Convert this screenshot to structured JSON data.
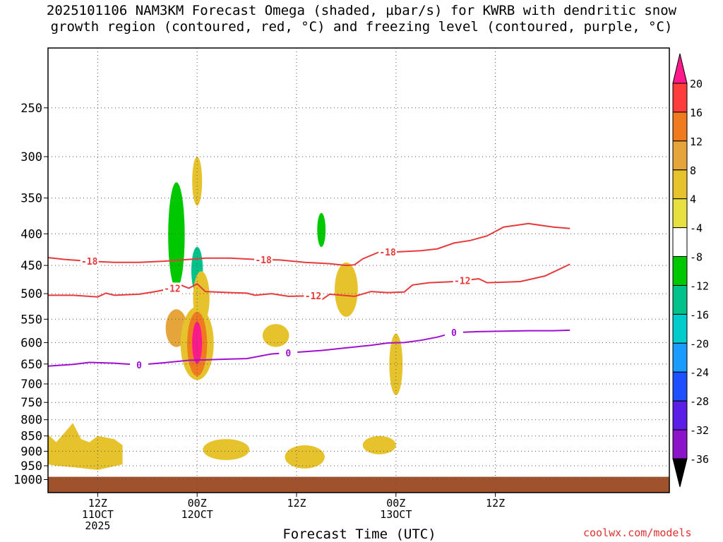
{
  "title": {
    "line1": "2025101106 NAM3KM Forecast Omega (shaded, µbar/s) for KWRB with dendritic snow",
    "line2": "growth region (contoured, red, °C) and freezing level (contoured, purple, °C)"
  },
  "credit": "coolwx.com/models",
  "chart_data": {
    "type": "heatmap",
    "xlabel": "Forecast Time (UTC)",
    "ylabel": "",
    "x_range_hours": [
      6,
      81
    ],
    "y_range_hpa": [
      1050,
      200
    ],
    "y_ticks": [
      250,
      300,
      350,
      400,
      450,
      500,
      550,
      600,
      650,
      700,
      750,
      800,
      850,
      900,
      950,
      1000
    ],
    "x_ticks": [
      {
        "hour": 12,
        "label": "12Z",
        "sub1": "11OCT",
        "sub2": "2025"
      },
      {
        "hour": 24,
        "label": "00Z",
        "sub1": "12OCT",
        "sub2": ""
      },
      {
        "hour": 36,
        "label": "12Z",
        "sub1": "",
        "sub2": ""
      },
      {
        "hour": 48,
        "label": "00Z",
        "sub1": "13OCT",
        "sub2": ""
      },
      {
        "hour": 60,
        "label": "12Z",
        "sub1": "",
        "sub2": ""
      }
    ],
    "grid": true,
    "colorbar": {
      "levels": [
        20,
        16,
        12,
        8,
        4,
        -4,
        -8,
        -12,
        -16,
        -20,
        -24,
        -28,
        -32,
        -36
      ],
      "colors": [
        "#ff1a8c",
        "#ff3d3d",
        "#f07a1e",
        "#e6a53a",
        "#e6c32c",
        "#e6e040",
        "#ffffff",
        "#00c800",
        "#00c28a",
        "#00cccc",
        "#1a9cff",
        "#1e50ff",
        "#5a1ee6",
        "#8c14c8",
        "#b400c8",
        "#a0a0a0",
        "#000000"
      ]
    },
    "contours": [
      {
        "color": "#e83a3a",
        "label": "-18",
        "points": [
          [
            6,
            437
          ],
          [
            8,
            440
          ],
          [
            11,
            443
          ],
          [
            14,
            445
          ],
          [
            17,
            445
          ],
          [
            20,
            443
          ],
          [
            23,
            440
          ],
          [
            25,
            438
          ],
          [
            28,
            438
          ],
          [
            31,
            440
          ],
          [
            34,
            441
          ],
          [
            37,
            445
          ],
          [
            40,
            447
          ],
          [
            42,
            450
          ],
          [
            43,
            449
          ],
          [
            44,
            439
          ],
          [
            46,
            428
          ],
          [
            48,
            428
          ],
          [
            51,
            426
          ],
          [
            53,
            423
          ],
          [
            55,
            414
          ],
          [
            57,
            410
          ],
          [
            59,
            403
          ],
          [
            61,
            390
          ],
          [
            64,
            385
          ],
          [
            67,
            390
          ],
          [
            69,
            392
          ]
        ],
        "label_hours": [
          11,
          32,
          47
        ]
      },
      {
        "color": "#e83a3a",
        "label": "-12",
        "points": [
          [
            6,
            503
          ],
          [
            9,
            503
          ],
          [
            12,
            506
          ],
          [
            13,
            499
          ],
          [
            14,
            503
          ],
          [
            17,
            501
          ],
          [
            19,
            496
          ],
          [
            21,
            490
          ],
          [
            22,
            484
          ],
          [
            23,
            490
          ],
          [
            24,
            482
          ],
          [
            25,
            496
          ],
          [
            28,
            498
          ],
          [
            30,
            499
          ],
          [
            31,
            503
          ],
          [
            33,
            500
          ],
          [
            35,
            505
          ],
          [
            38,
            504
          ],
          [
            39,
            512
          ],
          [
            40,
            501
          ],
          [
            43,
            505
          ],
          [
            45,
            496
          ],
          [
            47,
            498
          ],
          [
            49,
            497
          ],
          [
            50,
            484
          ],
          [
            52,
            480
          ],
          [
            55,
            478
          ],
          [
            58,
            473
          ],
          [
            59,
            480
          ],
          [
            63,
            478
          ],
          [
            66,
            468
          ],
          [
            69,
            448
          ]
        ],
        "label_hours": [
          21,
          38,
          56
        ]
      },
      {
        "color": "#a010d0",
        "label": "0",
        "points": [
          [
            6,
            655
          ],
          [
            9,
            651
          ],
          [
            11,
            646
          ],
          [
            14,
            648
          ],
          [
            17,
            652
          ],
          [
            20,
            647
          ],
          [
            23,
            641
          ],
          [
            25,
            640
          ],
          [
            28,
            638
          ],
          [
            30,
            637
          ],
          [
            33,
            626
          ],
          [
            36,
            622
          ],
          [
            39,
            618
          ],
          [
            42,
            612
          ],
          [
            45,
            606
          ],
          [
            47,
            601
          ],
          [
            49,
            600
          ],
          [
            51,
            595
          ],
          [
            53,
            588
          ],
          [
            55,
            578
          ],
          [
            58,
            576
          ],
          [
            61,
            575
          ],
          [
            64,
            574
          ],
          [
            67,
            574
          ],
          [
            69,
            573
          ]
        ],
        "label_hours": [
          17,
          35,
          55
        ]
      }
    ],
    "shaded_regions": [
      {
        "omega": -4,
        "hour": 21.5,
        "p_top": 315,
        "p_bot": 505,
        "w": 1.6
      },
      {
        "omega": -8,
        "hour": 21.5,
        "p_top": 330,
        "p_bot": 490,
        "w": 1.0
      },
      {
        "omega": -4,
        "hour": 24.0,
        "p_top": 410,
        "p_bot": 510,
        "w": 1.7
      },
      {
        "omega": -12,
        "hour": 24.0,
        "p_top": 420,
        "p_bot": 500,
        "w": 0.7
      },
      {
        "omega": 4,
        "hour": 33.5,
        "p_top": 560,
        "p_bot": 610,
        "w": 1.6
      },
      {
        "omega": -4,
        "hour": 39.0,
        "p_top": 330,
        "p_bot": 440,
        "w": 1.4
      },
      {
        "omega": -8,
        "hour": 39.0,
        "p_top": 370,
        "p_bot": 420,
        "w": 0.5
      },
      {
        "omega": 4,
        "hour": 42.0,
        "p_top": 445,
        "p_bot": 545,
        "w": 1.4
      },
      {
        "omega": -4,
        "hour": 42.5,
        "p_top": 700,
        "p_bot": 860,
        "w": 0.8
      },
      {
        "omega": -4,
        "hour": 48.0,
        "p_top": 465,
        "p_bot": 525,
        "w": 0.8
      },
      {
        "omega": 4,
        "hour": 48.0,
        "p_top": 580,
        "p_bot": 730,
        "w": 0.8
      },
      {
        "omega": 4,
        "hour": 24.0,
        "p_top": 300,
        "p_bot": 360,
        "w": 0.6
      },
      {
        "omega": 4,
        "hour": 24.5,
        "p_top": 460,
        "p_bot": 560,
        "w": 1.0
      },
      {
        "omega": 8,
        "hour": 21.5,
        "p_top": 530,
        "p_bot": 610,
        "w": 1.3
      },
      {
        "omega": 4,
        "hour": 24.0,
        "p_top": 525,
        "p_bot": 690,
        "w": 2.0
      },
      {
        "omega": 12,
        "hour": 24.0,
        "p_top": 535,
        "p_bot": 680,
        "w": 1.2
      },
      {
        "omega": 20,
        "hour": 24.0,
        "p_top": 555,
        "p_bot": 650,
        "w": 0.6
      },
      {
        "omega": 4,
        "hour": 27.5,
        "p_top": 860,
        "p_bot": 930,
        "w": 2.8
      },
      {
        "omega": 4,
        "hour": 37.0,
        "p_top": 880,
        "p_bot": 960,
        "w": 2.4
      },
      {
        "omega": 4,
        "hour": 46.0,
        "p_top": 850,
        "p_bot": 910,
        "w": 2.0
      }
    ],
    "low_level_region": {
      "omega": 4,
      "points": [
        [
          6,
          845
        ],
        [
          7,
          870
        ],
        [
          9,
          810
        ],
        [
          10,
          860
        ],
        [
          11,
          870
        ],
        [
          12,
          850
        ],
        [
          14,
          860
        ],
        [
          15,
          880
        ],
        [
          15,
          945
        ],
        [
          12,
          965
        ],
        [
          9,
          955
        ],
        [
          7,
          950
        ],
        [
          6,
          945
        ]
      ]
    },
    "terrain": {
      "color": "#a0522d",
      "p_top": 990
    }
  }
}
